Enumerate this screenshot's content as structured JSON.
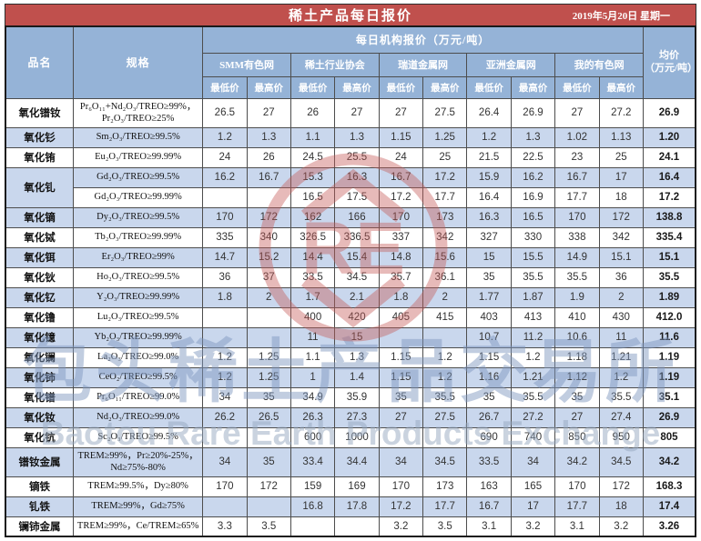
{
  "header": {
    "title": "稀土产品每日报价",
    "date": "2019年5月20日 星期一"
  },
  "table": {
    "col_product": "品名",
    "col_spec": "规格",
    "col_daily_quotes": "每日机构报价（万元/吨）",
    "col_avg": "均价\n（万元/吨）",
    "agencies": [
      "SMM有色网",
      "稀土行业协会",
      "瑞道金属网",
      "亚洲金属网",
      "我的有色网"
    ],
    "price_labels": {
      "low": "最低价",
      "high": "最高价"
    },
    "rows": [
      {
        "product": "氧化镨钕",
        "product_rowspan": 1,
        "tall": true,
        "spec": "Pr₆O₁₁+Nd₂O₃/TREO≥99%，\nPr₂O₃/TREO≥25%",
        "prices": [
          "26.5",
          "27",
          "26",
          "27",
          "27",
          "27.5",
          "26.4",
          "26.9",
          "27",
          "27.2"
        ],
        "avg": "26.9"
      },
      {
        "product": "氧化钐",
        "product_rowspan": 1,
        "tall": false,
        "spec": "Sm₂O₃/TREO≥99.5%",
        "prices": [
          "1.2",
          "1.3",
          "1.1",
          "1.3",
          "1.15",
          "1.25",
          "1.2",
          "1.3",
          "1.02",
          "1.13"
        ],
        "avg": "1.20"
      },
      {
        "product": "氧化铕",
        "product_rowspan": 1,
        "tall": false,
        "spec": "Eu₂O₃/TREO≥99.99%",
        "prices": [
          "24",
          "26",
          "24.5",
          "25.5",
          "24",
          "25",
          "21.5",
          "22.5",
          "23",
          "25"
        ],
        "avg": "24.1"
      },
      {
        "product": "氧化钆",
        "product_rowspan": 2,
        "tall": false,
        "spec": "Gd₂O₃/TREO≥99.5%",
        "prices": [
          "16.2",
          "16.7",
          "15.3",
          "16.3",
          "16.7",
          "17.2",
          "15.9",
          "16.2",
          "16.7",
          "17"
        ],
        "avg": "16.4"
      },
      {
        "product": null,
        "product_rowspan": 1,
        "tall": false,
        "spec": "Gd₂O₃/TREO≥99.99%",
        "prices": [
          "",
          "",
          "16.5",
          "17.5",
          "17.2",
          "17.7",
          "16.4",
          "16.9",
          "17.7",
          "18"
        ],
        "avg": "17.2"
      },
      {
        "product": "氧化镝",
        "product_rowspan": 1,
        "tall": false,
        "spec": "Dy₂O₃/TREO≥99.5%",
        "prices": [
          "170",
          "172",
          "162",
          "166",
          "170",
          "173",
          "16.3",
          "16.5",
          "170",
          "172"
        ],
        "avg": "138.8"
      },
      {
        "product": "氧化铽",
        "product_rowspan": 1,
        "tall": false,
        "spec": "Tb₂O₃/TREO≥99.99%",
        "prices": [
          "335",
          "340",
          "326.5",
          "336.5",
          "337",
          "342",
          "327",
          "330",
          "338",
          "342"
        ],
        "avg": "335.4"
      },
      {
        "product": "氧化铒",
        "product_rowspan": 1,
        "tall": false,
        "spec": "Er₂O₃/TREO≥99%",
        "prices": [
          "14.7",
          "15.2",
          "14.4",
          "15.4",
          "14.8",
          "15.6",
          "15",
          "15.5",
          "14.9",
          "15.1"
        ],
        "avg": "15.1"
      },
      {
        "product": "氧化钬",
        "product_rowspan": 1,
        "tall": false,
        "spec": "Ho₂O₃/TREO≥99.5%",
        "prices": [
          "36",
          "37",
          "33.5",
          "34.5",
          "35.7",
          "36.1",
          "35",
          "35.5",
          "35.5",
          "36"
        ],
        "avg": "35.5"
      },
      {
        "product": "氧化钇",
        "product_rowspan": 1,
        "tall": false,
        "spec": "Y₂O₃/TREO≥99.99%",
        "prices": [
          "1.8",
          "2",
          "1.7",
          "2.1",
          "1.8",
          "2",
          "1.77",
          "1.87",
          "1.9",
          "2"
        ],
        "avg": "1.89"
      },
      {
        "product": "氧化镥",
        "product_rowspan": 1,
        "tall": false,
        "spec": "Lu₂O₃/TREO≥99.5%",
        "prices": [
          "",
          "",
          "400",
          "420",
          "405",
          "415",
          "403",
          "413",
          "410",
          "430"
        ],
        "avg": "412.0"
      },
      {
        "product": "氧化镱",
        "product_rowspan": 1,
        "tall": false,
        "spec": "Yb₂O₃/TREO≥99.99%",
        "prices": [
          "",
          "",
          "11",
          "15",
          "",
          "",
          "10.7",
          "11.2",
          "10.6",
          "11"
        ],
        "avg": "11.6"
      },
      {
        "product": "氧化镧",
        "product_rowspan": 1,
        "tall": false,
        "spec": "La₂O₃/TREO≥99.0%",
        "prices": [
          "1.2",
          "1.25",
          "1.1",
          "1.3",
          "1.15",
          "1.2",
          "1.15",
          "1.2",
          "1.18",
          "1.21"
        ],
        "avg": "1.19"
      },
      {
        "product": "氧化铈",
        "product_rowspan": 1,
        "tall": false,
        "spec": "CeO₂/TREO≥99.5%",
        "prices": [
          "1.2",
          "1.25",
          "1",
          "1.4",
          "1.15",
          "1.2",
          "1.16",
          "1.21",
          "1.12",
          "1.2"
        ],
        "avg": "1.19"
      },
      {
        "product": "氧化镨",
        "product_rowspan": 1,
        "tall": false,
        "spec": "Pr₆O₁₁/TREO≥99.0%",
        "prices": [
          "34",
          "35",
          "34.9",
          "35.9",
          "35",
          "35.5",
          "35",
          "35.5",
          "35",
          "35.5"
        ],
        "avg": "35.1"
      },
      {
        "product": "氧化钕",
        "product_rowspan": 1,
        "tall": false,
        "spec": "Nd₂O₃/TREO≥99.0%",
        "prices": [
          "26.2",
          "26.5",
          "26.3",
          "27.3",
          "27",
          "27.5",
          "26.7",
          "27.2",
          "27",
          "27.4"
        ],
        "avg": "26.9"
      },
      {
        "product": "氧化钪",
        "product_rowspan": 1,
        "tall": false,
        "spec": "Sc₂O₃/TREO≥99.5%",
        "prices": [
          "",
          "",
          "600",
          "1000",
          "",
          "",
          "690",
          "740",
          "850",
          "950"
        ],
        "avg": "805"
      },
      {
        "product": "镨钕金属",
        "product_rowspan": 1,
        "tall": true,
        "spec": "TREM≥99%，Pr≥20%-25%，\nNd≥75%-80%",
        "prices": [
          "34",
          "35",
          "33.4",
          "34.4",
          "34",
          "34.5",
          "33.5",
          "34",
          "34.2",
          "34.5"
        ],
        "avg": "34.2"
      },
      {
        "product": "镝铁",
        "product_rowspan": 1,
        "tall": false,
        "spec": "TREM≥99.5%，Dy≥80%",
        "prices": [
          "170",
          "172",
          "159",
          "169",
          "170",
          "173",
          "163",
          "165",
          "170",
          "172"
        ],
        "avg": "168.3"
      },
      {
        "product": "钆铁",
        "product_rowspan": 1,
        "tall": false,
        "spec": "TREM≥99%，Gd≥75%",
        "prices": [
          "",
          "",
          "16.8",
          "17.8",
          "17.2",
          "17.7",
          "16.7",
          "17",
          "17.7",
          "18"
        ],
        "avg": "17.4"
      },
      {
        "product": "镧铈金属",
        "product_rowspan": 1,
        "tall": false,
        "spec": "TREM≥99%，Ce/TREM≥65%",
        "prices": [
          "3.3",
          "3.5",
          "",
          "",
          "3.2",
          "3.5",
          "3.1",
          "3.2",
          "3.1",
          "3.2"
        ],
        "avg": "3.26"
      }
    ]
  },
  "watermark": {
    "chinese": "包头稀土产品交易所",
    "english": "Baotou Rare Earth Products Exchange",
    "logo_text": "RE"
  },
  "colors": {
    "title_bar_bg": "#C0504D",
    "header_bg": "#95B3D7",
    "row_alt_bg": "#C9D7ED",
    "watermark_red": "#C85E5B",
    "watermark_blue": "#7D96BE"
  }
}
